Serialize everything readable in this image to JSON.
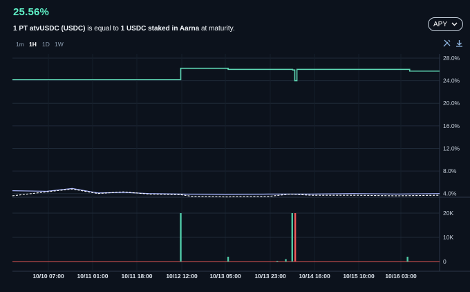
{
  "header": {
    "apy_value": "25.56%",
    "desc_bold1": "1 PT atvUSDC (USDC)",
    "desc_text1": " is equal to ",
    "desc_bold2": "1 USDC staked in Aarna",
    "desc_text2": " at maturity."
  },
  "timeframes": [
    "1m",
    "1H",
    "1D",
    "1W"
  ],
  "active_timeframe": "1H",
  "mode_button": {
    "label": "APY",
    "icon": "chevron-down-icon"
  },
  "toolbar_icons": [
    "tools-icon",
    "download-icon"
  ],
  "colors": {
    "background": "#0c121c",
    "implied_apy": "#5ed6b3",
    "underlying_line": "#aab6ff",
    "underlying_dash": "#ffffff",
    "volume_buy": "#4fc9a6",
    "volume_sell": "#f05a5a",
    "grid": "#1f2a38"
  },
  "chart_data": [
    {
      "type": "line",
      "x_ticks": [
        "10/10 07:00",
        "10/11 01:00",
        "10/11 18:00",
        "10/12 12:00",
        "10/13 05:00",
        "10/13 23:00",
        "10/14 16:00",
        "10/15 10:00",
        "10/16 03:00"
      ],
      "y_ticks": [
        "28.0%",
        "24.0%",
        "20.0%",
        "16.0%",
        "12.0%",
        "8.0%",
        "4.0%"
      ],
      "ylim": [
        2,
        28
      ],
      "series": [
        {
          "style": "step",
          "x": [
            0,
            0.394,
            0.394,
            0.505,
            0.505,
            0.656,
            0.656,
            0.661,
            0.661,
            0.666,
            0.666,
            0.93,
            0.93,
            1.0
          ],
          "values": [
            24.2,
            24.2,
            26.2,
            26.2,
            26.0,
            26.0,
            25.9,
            25.9,
            24.0,
            24.0,
            26.0,
            26.0,
            25.7,
            25.7
          ]
        },
        {
          "style": "solid",
          "x": [
            0,
            0.08,
            0.14,
            0.2,
            0.26,
            0.32,
            0.394,
            0.5,
            0.6,
            0.7,
            0.8,
            0.9,
            1.0
          ],
          "values": [
            4.5,
            4.4,
            4.9,
            4.1,
            4.2,
            4.0,
            3.9,
            3.8,
            3.9,
            3.9,
            4.0,
            3.9,
            4.0
          ]
        },
        {
          "style": "dashed",
          "x": [
            0,
            0.08,
            0.14,
            0.2,
            0.26,
            0.32,
            0.394,
            0.42,
            0.5,
            0.6,
            0.65,
            0.7,
            0.8,
            0.9,
            1.0
          ],
          "values": [
            3.6,
            4.3,
            4.8,
            4.0,
            4.3,
            3.9,
            3.8,
            3.5,
            3.4,
            3.5,
            3.9,
            3.7,
            3.7,
            3.6,
            3.7
          ]
        }
      ]
    },
    {
      "type": "bar",
      "y_ticks": [
        "20K",
        "10K",
        "0"
      ],
      "ylim": [
        0,
        20000
      ],
      "bars": [
        {
          "x": 0.394,
          "value": 20000,
          "side": "buy"
        },
        {
          "x": 0.505,
          "value": 2000,
          "side": "buy"
        },
        {
          "x": 0.62,
          "value": 300,
          "side": "buy"
        },
        {
          "x": 0.64,
          "value": 1000,
          "side": "buy"
        },
        {
          "x": 0.655,
          "value": 20000,
          "side": "buy"
        },
        {
          "x": 0.662,
          "value": 20000,
          "side": "sell"
        },
        {
          "x": 0.925,
          "value": 2000,
          "side": "buy"
        }
      ]
    }
  ]
}
